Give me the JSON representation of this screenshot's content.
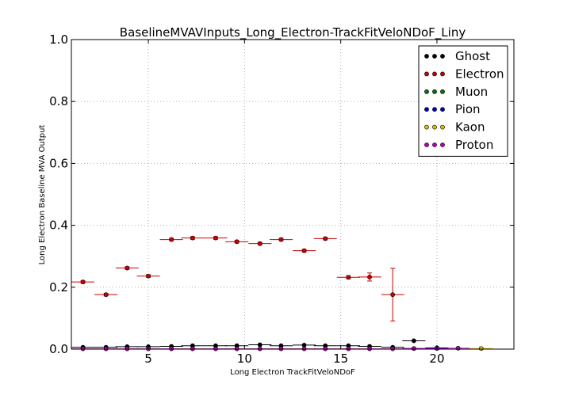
{
  "chart_data": {
    "type": "scatter",
    "title": "BaselineMVAVInputs_Long_Electron-TrackFitVeloNDoF_Liny",
    "xlabel": "Long Electron TrackFitVeloNDoF",
    "ylabel": "Long Electron Baseline MVA Output",
    "xlim": [
      1,
      24
    ],
    "ylim": [
      0,
      1
    ],
    "xticks": [
      5,
      10,
      15,
      20
    ],
    "yticks": [
      0.0,
      0.2,
      0.4,
      0.6,
      0.8,
      1.0
    ],
    "ytick_labels": [
      "0.0",
      "0.2",
      "0.4",
      "0.6",
      "0.8",
      "1.0"
    ],
    "grid": true,
    "legend_position": "top-right",
    "series": [
      {
        "name": "Ghost",
        "color": "#000000",
        "points": [
          {
            "x": 1.6,
            "xerr": 0.6,
            "y": 0.006,
            "yerr": 0.001
          },
          {
            "x": 2.8,
            "xerr": 0.6,
            "y": 0.006,
            "yerr": 0.001
          },
          {
            "x": 3.9,
            "xerr": 0.6,
            "y": 0.008,
            "yerr": 0.001
          },
          {
            "x": 5.0,
            "xerr": 0.6,
            "y": 0.008,
            "yerr": 0.001
          },
          {
            "x": 6.2,
            "xerr": 0.6,
            "y": 0.009,
            "yerr": 0.001
          },
          {
            "x": 7.3,
            "xerr": 0.6,
            "y": 0.011,
            "yerr": 0.001
          },
          {
            "x": 8.5,
            "xerr": 0.6,
            "y": 0.011,
            "yerr": 0.001
          },
          {
            "x": 9.6,
            "xerr": 0.6,
            "y": 0.011,
            "yerr": 0.001
          },
          {
            "x": 10.8,
            "xerr": 0.6,
            "y": 0.014,
            "yerr": 0.001
          },
          {
            "x": 11.9,
            "xerr": 0.6,
            "y": 0.011,
            "yerr": 0.001
          },
          {
            "x": 13.1,
            "xerr": 0.6,
            "y": 0.013,
            "yerr": 0.001
          },
          {
            "x": 14.2,
            "xerr": 0.6,
            "y": 0.011,
            "yerr": 0.001
          },
          {
            "x": 15.4,
            "xerr": 0.6,
            "y": 0.011,
            "yerr": 0.001
          },
          {
            "x": 16.5,
            "xerr": 0.6,
            "y": 0.009,
            "yerr": 0.001
          },
          {
            "x": 17.7,
            "xerr": 0.6,
            "y": 0.006,
            "yerr": 0.001
          },
          {
            "x": 18.8,
            "xerr": 0.6,
            "y": 0.027,
            "yerr": 0.002
          },
          {
            "x": 20.0,
            "xerr": 0.6,
            "y": 0.003,
            "yerr": 0.001
          }
        ]
      },
      {
        "name": "Electron",
        "color": "#cc0000",
        "points": [
          {
            "x": 1.6,
            "xerr": 0.6,
            "y": 0.217,
            "yerr": 0.004
          },
          {
            "x": 2.8,
            "xerr": 0.6,
            "y": 0.176,
            "yerr": 0.004
          },
          {
            "x": 3.9,
            "xerr": 0.6,
            "y": 0.262,
            "yerr": 0.004
          },
          {
            "x": 5.0,
            "xerr": 0.6,
            "y": 0.236,
            "yerr": 0.004
          },
          {
            "x": 6.2,
            "xerr": 0.6,
            "y": 0.354,
            "yerr": 0.004
          },
          {
            "x": 7.3,
            "xerr": 0.6,
            "y": 0.359,
            "yerr": 0.004
          },
          {
            "x": 8.5,
            "xerr": 0.6,
            "y": 0.359,
            "yerr": 0.004
          },
          {
            "x": 9.6,
            "xerr": 0.6,
            "y": 0.347,
            "yerr": 0.004
          },
          {
            "x": 10.8,
            "xerr": 0.6,
            "y": 0.341,
            "yerr": 0.004
          },
          {
            "x": 11.9,
            "xerr": 0.6,
            "y": 0.354,
            "yerr": 0.004
          },
          {
            "x": 13.1,
            "xerr": 0.6,
            "y": 0.318,
            "yerr": 0.004
          },
          {
            "x": 14.2,
            "xerr": 0.6,
            "y": 0.357,
            "yerr": 0.004
          },
          {
            "x": 15.4,
            "xerr": 0.6,
            "y": 0.232,
            "yerr": 0.005
          },
          {
            "x": 16.5,
            "xerr": 0.6,
            "y": 0.233,
            "yerr": 0.013
          },
          {
            "x": 17.7,
            "xerr": 0.6,
            "y": 0.176,
            "yerr": 0.085
          }
        ]
      },
      {
        "name": "Muon",
        "color": "#007700",
        "points": []
      },
      {
        "name": "Pion",
        "color": "#0000cc",
        "points": [
          {
            "x": 18.8,
            "xerr": 0.6,
            "y": 0.002,
            "yerr": 0.001
          },
          {
            "x": 20.0,
            "xerr": 0.6,
            "y": 0.004,
            "yerr": 0.001
          }
        ]
      },
      {
        "name": "Kaon",
        "color": "#ddbb00",
        "points": [
          {
            "x": 22.3,
            "xerr": 0.6,
            "y": 0.002,
            "yerr": 0.001
          }
        ]
      },
      {
        "name": "Proton",
        "color": "#bb00bb",
        "points": [
          {
            "x": 1.6,
            "xerr": 0.6,
            "y": 0.001,
            "yerr": 0.0
          },
          {
            "x": 2.8,
            "xerr": 0.6,
            "y": 0.001,
            "yerr": 0.0
          },
          {
            "x": 3.9,
            "xerr": 0.6,
            "y": 0.001,
            "yerr": 0.0
          },
          {
            "x": 5.0,
            "xerr": 0.6,
            "y": 0.001,
            "yerr": 0.0
          },
          {
            "x": 6.2,
            "xerr": 0.6,
            "y": 0.001,
            "yerr": 0.0
          },
          {
            "x": 7.3,
            "xerr": 0.6,
            "y": 0.001,
            "yerr": 0.0
          },
          {
            "x": 8.5,
            "xerr": 0.6,
            "y": 0.001,
            "yerr": 0.0
          },
          {
            "x": 9.6,
            "xerr": 0.6,
            "y": 0.001,
            "yerr": 0.0
          },
          {
            "x": 10.8,
            "xerr": 0.6,
            "y": 0.001,
            "yerr": 0.0
          },
          {
            "x": 11.9,
            "xerr": 0.6,
            "y": 0.001,
            "yerr": 0.0
          },
          {
            "x": 13.1,
            "xerr": 0.6,
            "y": 0.001,
            "yerr": 0.0
          },
          {
            "x": 14.2,
            "xerr": 0.6,
            "y": 0.001,
            "yerr": 0.0
          },
          {
            "x": 15.4,
            "xerr": 0.6,
            "y": 0.001,
            "yerr": 0.0
          },
          {
            "x": 16.5,
            "xerr": 0.6,
            "y": 0.001,
            "yerr": 0.0
          },
          {
            "x": 17.7,
            "xerr": 0.6,
            "y": 0.001,
            "yerr": 0.0
          },
          {
            "x": 18.8,
            "xerr": 0.6,
            "y": 0.002,
            "yerr": 0.001
          },
          {
            "x": 20.0,
            "xerr": 0.6,
            "y": 0.002,
            "yerr": 0.001
          },
          {
            "x": 21.1,
            "xerr": 0.6,
            "y": 0.003,
            "yerr": 0.001
          }
        ]
      }
    ]
  }
}
